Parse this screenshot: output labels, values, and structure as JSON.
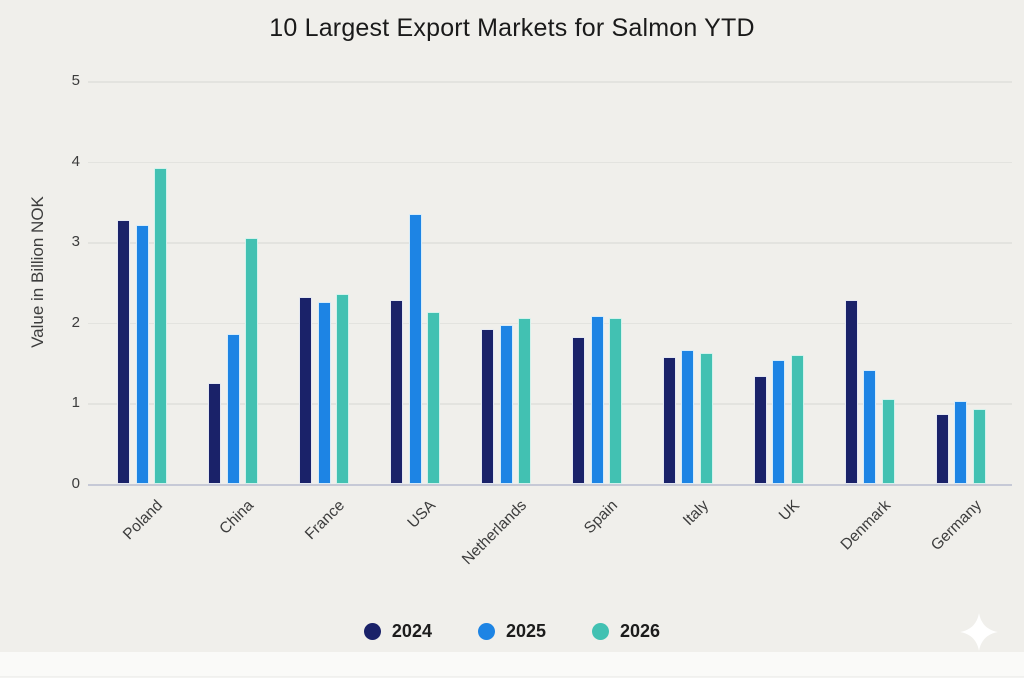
{
  "page": {
    "background": "#f0efeb"
  },
  "chart_data": {
    "type": "bar",
    "title": "10 Largest Export Markets for Salmon YTD",
    "xlabel": "",
    "ylabel": "Value in Billion NOK",
    "ylim": [
      0,
      5
    ],
    "yticks": [
      0,
      1,
      2,
      3,
      4,
      5
    ],
    "grid": true,
    "legend_position": "bottom",
    "categories": [
      "Poland",
      "China",
      "France",
      "USA",
      "Netherlands",
      "Spain",
      "Italy",
      "UK",
      "Denmark",
      "Germany"
    ],
    "series": [
      {
        "name": "2024",
        "color": "#1a2269",
        "edge": "#e4e8f2",
        "values": [
          3.27,
          1.25,
          2.32,
          2.28,
          1.92,
          1.83,
          1.58,
          1.34,
          2.28,
          0.87
        ]
      },
      {
        "name": "2025",
        "color": "#1d84e4",
        "edge": "#d6ecfa",
        "values": [
          3.22,
          1.86,
          2.26,
          3.35,
          1.97,
          2.09,
          1.66,
          1.54,
          1.41,
          1.03
        ]
      },
      {
        "name": "2026",
        "color": "#42c1b2",
        "edge": "#d2f2ec",
        "values": [
          3.92,
          3.05,
          2.36,
          2.13,
          2.06,
          2.06,
          1.62,
          1.6,
          1.05,
          0.93
        ]
      }
    ]
  },
  "icons": {
    "sparkle": "✦"
  }
}
